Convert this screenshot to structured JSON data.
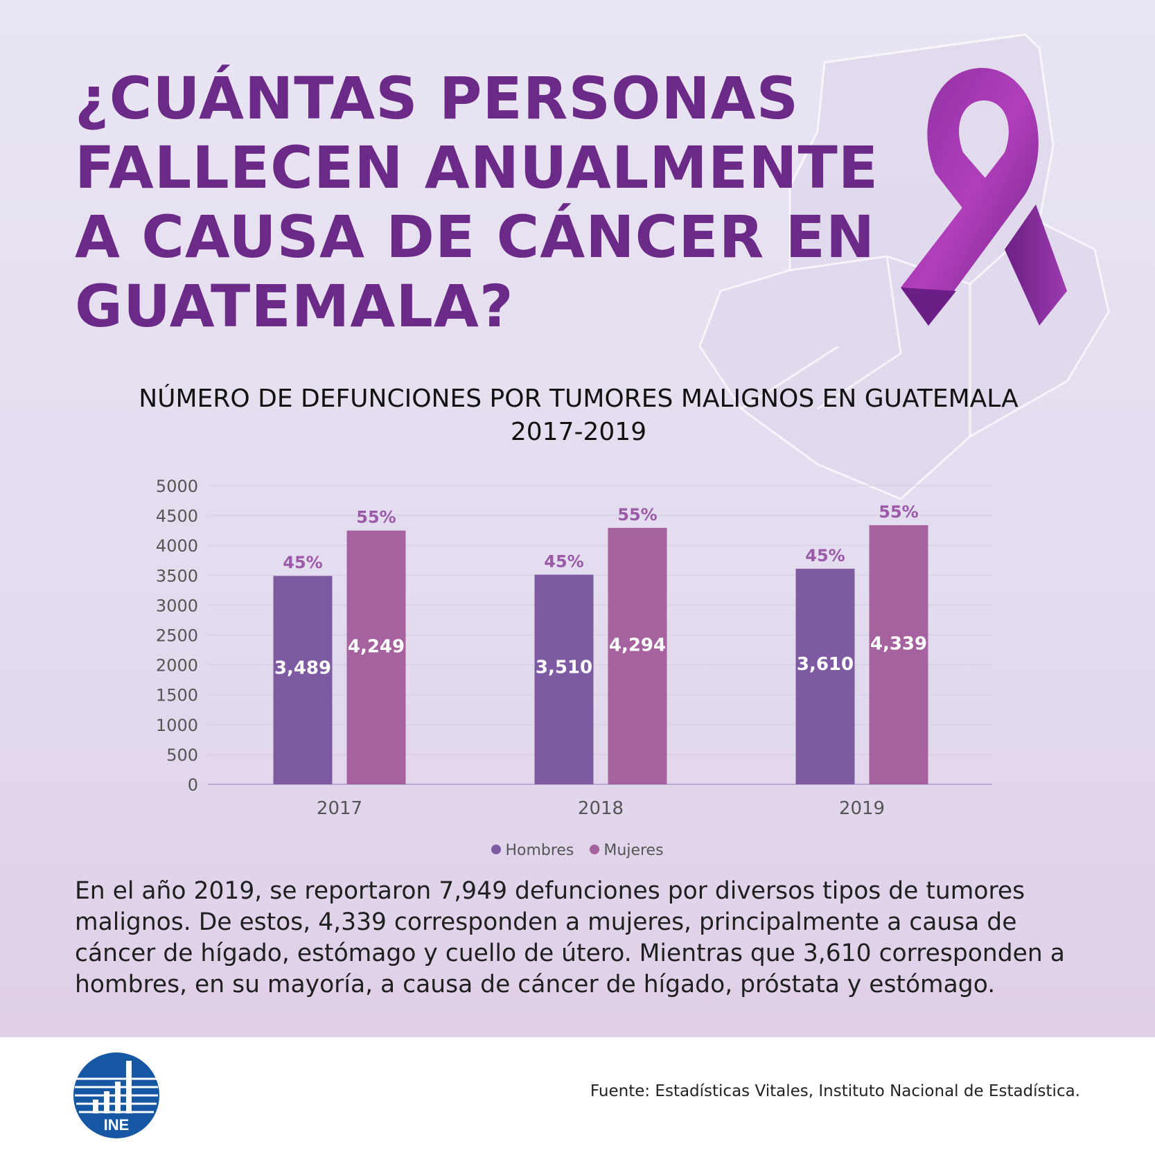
{
  "headline": "¿CUÁNTAS PERSONAS FALLECEN ANUALMENTE A CAUSA DE CÁNCER EN GUATEMALA?",
  "chart_title_line1": "NÚMERO DE DEFUNCIONES POR TUMORES MALIGNOS EN GUATEMALA",
  "chart_title_line2": "2017-2019",
  "chart_data": {
    "type": "bar",
    "title": "NÚMERO DE DEFUNCIONES POR TUMORES MALIGNOS EN GUATEMALA 2017-2019",
    "categories": [
      "2017",
      "2018",
      "2019"
    ],
    "series": [
      {
        "name": "Hombres",
        "values": [
          3489,
          3510,
          3610
        ],
        "value_labels": [
          "3,489",
          "3,510",
          "3,610"
        ],
        "pct_labels": [
          "45%",
          "45%",
          "45%"
        ],
        "color": "#7e5aa2"
      },
      {
        "name": "Mujeres",
        "values": [
          4249,
          4294,
          4339
        ],
        "value_labels": [
          "4,249",
          "4,294",
          "4,339"
        ],
        "pct_labels": [
          "55%",
          "55%",
          "55%"
        ],
        "color": "#a6619f"
      }
    ],
    "ylim": [
      0,
      5000
    ],
    "yticks": [
      "5000",
      "4500",
      "4000",
      "3500",
      "3000",
      "2500",
      "2000",
      "1500",
      "1000",
      "500",
      "0"
    ],
    "grid": true,
    "legend": "bottom"
  },
  "legend": {
    "hombres": "Hombres",
    "mujeres": "Mujeres"
  },
  "summary": "En el año 2019, se reportaron 7,949 defunciones por diversos tipos de tumores malignos. De estos, 4,339 corresponden a mujeres, principalmente a causa de cáncer de hígado, estómago y cuello de útero. Mientras que 3,610 corresponden a hombres, en su mayoría, a causa de cáncer de hígado, próstata y estómago.",
  "source": "Fuente: Estadísticas Vitales, Instituto Nacional de Estadística.",
  "logo_text": "INE",
  "colors": {
    "headline": "#6b2a87",
    "hombres": "#7e5aa2",
    "mujeres": "#a6619f",
    "pct_label": "#9a5aa8",
    "logo_blue": "#1657a3"
  },
  "icons": [
    "awareness-ribbon-icon",
    "guatemala-map-watermark",
    "ine-logo"
  ]
}
